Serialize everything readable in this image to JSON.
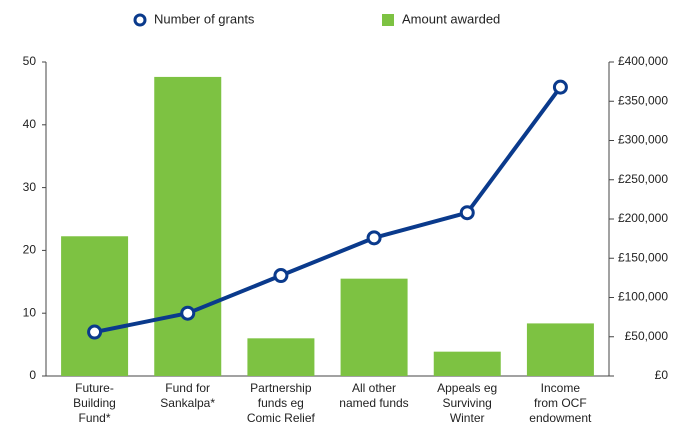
{
  "chart_data": {
    "type": "bar_line",
    "categories": [
      "Future-\nBuilding\nFund*",
      "Fund for\nSankalpa*",
      "Partnership\nfunds eg\nComic Relief",
      "All other\nnamed funds",
      "Appeals eg\nSurviving\nWinter",
      "Income\nfrom OCF\nendowment"
    ],
    "series": [
      {
        "name": "Number of grants",
        "type": "line",
        "color": "#0a3a8c",
        "axis": "y",
        "values": [
          7,
          10,
          16,
          22,
          26,
          46
        ]
      },
      {
        "name": "Amount awarded",
        "type": "bar",
        "color": "#7dc242",
        "axis": "y2",
        "values": [
          178000,
          381000,
          48000,
          124000,
          31000,
          67000
        ]
      }
    ],
    "ylim": [
      0,
      50
    ],
    "yticks": [
      0,
      10,
      20,
      30,
      40,
      50
    ],
    "y2lim": [
      0,
      400000
    ],
    "y2ticks": [
      {
        "value": 0,
        "label": "£0"
      },
      {
        "value": 50000,
        "label": "£50,000"
      },
      {
        "value": 100000,
        "label": "£100,000"
      },
      {
        "value": 150000,
        "label": "£150,000"
      },
      {
        "value": 200000,
        "label": "£200,000"
      },
      {
        "value": 250000,
        "label": "£250,000"
      },
      {
        "value": 300000,
        "label": "£300,000"
      },
      {
        "value": 350000,
        "label": "£350,000"
      },
      {
        "value": 400000,
        "label": "£400,000"
      }
    ],
    "legend": "top"
  }
}
